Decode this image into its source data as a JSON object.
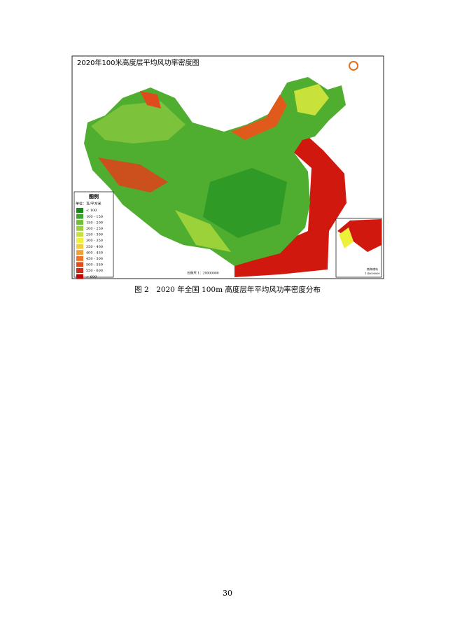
{
  "figure": {
    "title": "2020年100米高度层平均风功率密度图",
    "legend": {
      "title": "图例",
      "unit": "单位：瓦/平方米",
      "items": [
        {
          "label": "< 100",
          "color": "#138a13"
        },
        {
          "label": "100 - 150",
          "color": "#3ea32c"
        },
        {
          "label": "150 - 200",
          "color": "#6ebd38"
        },
        {
          "label": "200 - 250",
          "color": "#9bd23a"
        },
        {
          "label": "250 - 300",
          "color": "#c9e23b"
        },
        {
          "label": "300 - 350",
          "color": "#eef03a"
        },
        {
          "label": "350 - 400",
          "color": "#f6cf34"
        },
        {
          "label": "400 - 450",
          "color": "#f3a02e"
        },
        {
          "label": "450 - 500",
          "color": "#ec7424"
        },
        {
          "label": "500 - 550",
          "color": "#e04a1c"
        },
        {
          "label": "550 - 600",
          "color": "#d02a14"
        },
        {
          "label": "> 600",
          "color": "#c00606"
        }
      ]
    },
    "scale": "比例尺 1：20000000",
    "inset": {
      "label": "南海诸岛",
      "scale": "1:40000000"
    }
  },
  "caption": "图 2　2020 年全国 100m 高度层年平均风功率密度分布",
  "page_number": "30"
}
